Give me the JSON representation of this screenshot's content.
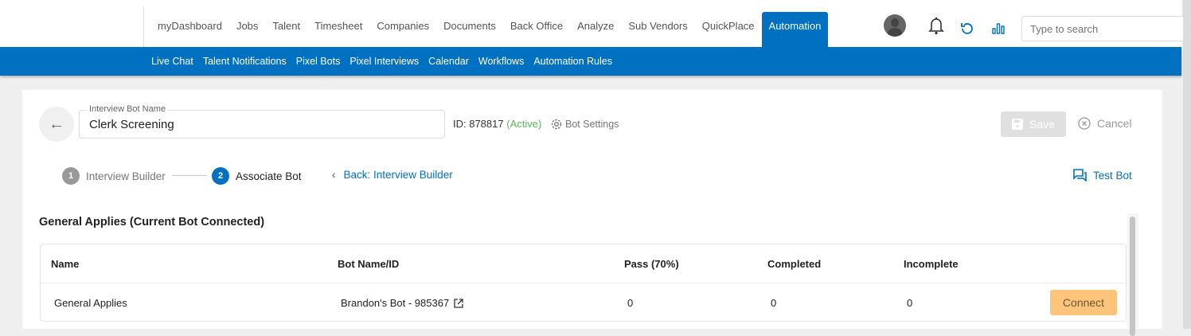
{
  "nav": {
    "items": [
      "myDashboard",
      "Jobs",
      "Talent",
      "Timesheet",
      "Companies",
      "Documents",
      "Back Office",
      "Analyze",
      "Sub Vendors",
      "QuickPlace",
      "Automation"
    ],
    "active": "Automation"
  },
  "subnav": {
    "items": [
      "Live Chat",
      "Talent Notifications",
      "Pixel Bots",
      "Pixel Interviews",
      "Calendar",
      "Workflows",
      "Automation Rules"
    ]
  },
  "search": {
    "placeholder": "Type to search"
  },
  "bot": {
    "name_label": "Interview Bot Name",
    "name_value": "Clerk Screening",
    "id_text": "ID: 878817",
    "status": "(Active)",
    "settings_label": "Bot Settings"
  },
  "actions": {
    "save": "Save",
    "cancel": "Cancel",
    "test_bot": "Test Bot"
  },
  "steps": [
    {
      "num": "1",
      "label": "Interview Builder"
    },
    {
      "num": "2",
      "label": "Associate Bot"
    }
  ],
  "back_link": "Back: Interview Builder",
  "section_title": "General Applies (Current Bot Connected)",
  "table": {
    "headers": [
      "Name",
      "Bot Name/ID",
      "Pass (70%)",
      "Completed",
      "Incomplete"
    ],
    "rows": [
      {
        "name": "General Applies",
        "bot": "Brandon's Bot  - 985367",
        "pass": "0",
        "completed": "0",
        "incomplete": "0",
        "action": "Connect"
      }
    ]
  },
  "colors": {
    "brand": "#0070c0",
    "active": "#5cb85c",
    "connect": "#ffc47c"
  }
}
